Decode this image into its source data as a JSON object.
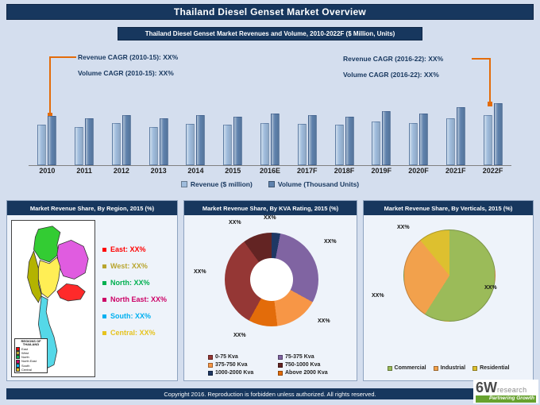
{
  "page": {
    "title": "Thailand Diesel Genset Market Overview",
    "footer_text": "Copyright 2016. Reproduction is forbidden unless authorized. All rights reserved.",
    "logo": {
      "mark": "6W",
      "name": "research",
      "tagline": "Partnering Growth"
    }
  },
  "colors": {
    "background": "#d4deee",
    "header_navy": "#17375e",
    "accent_orange": "#e36c0a"
  },
  "top_chart": {
    "title": "Thailand Diesel Genset Market Revenues and Volume, 2010-2022F ($ Million, Units)",
    "annotations": {
      "left": [
        "Revenue CAGR (2010-15): XX%",
        "Volume CAGR (2010-15): XX%"
      ],
      "right": [
        "Revenue CAGR (2016-22): XX%",
        "Volume CAGR (2016-22): XX%"
      ]
    }
  },
  "panels": {
    "region": {
      "title": "Market Revenue Share, By Region, 2015 (%)"
    },
    "kva": {
      "title": "Market Revenue Share, By KVA Rating, 2015 (%)"
    },
    "verticals": {
      "title": "Market Revenue Share, By Verticals, 2015 (%)"
    }
  },
  "region_panel": {
    "map_legend_title": "REGIONS OF THAILAND",
    "items": [
      {
        "name": "East",
        "label": "East: XX%",
        "color": "#ff0000"
      },
      {
        "name": "West",
        "label": "West: XX%",
        "color": "#b8a52e"
      },
      {
        "name": "North",
        "label": "North: XX%",
        "color": "#00b050"
      },
      {
        "name": "North East",
        "label": "North East: XX%",
        "color": "#cc0066"
      },
      {
        "name": "South",
        "label": "South: XX%",
        "color": "#00b0f0"
      },
      {
        "name": "Central",
        "label": "Central: XX%",
        "color": "#e6c31e"
      }
    ],
    "map_colors": {
      "north": "#33cc33",
      "north_east": "#e05ce0",
      "central": "#ffee55",
      "east": "#ff2a2a",
      "west": "#b3b300",
      "south": "#55d8e8"
    }
  },
  "chart_data": [
    {
      "type": "bar",
      "title": "Thailand Diesel Genset Market Revenues and Volume, 2010-2022F ($ Million, Units)",
      "categories": [
        "2010",
        "2011",
        "2012",
        "2013",
        "2014",
        "2015",
        "2016E",
        "2017F",
        "2018F",
        "2019F",
        "2020F",
        "2021F",
        "2022F"
      ],
      "series": [
        {
          "name": "Revenue ($ million)",
          "color": "#9fbcdc",
          "values": [
            55,
            52,
            58,
            52,
            57,
            55,
            58,
            56,
            55,
            60,
            58,
            64,
            68
          ]
        },
        {
          "name": "Volume (Thousand Units)",
          "color": "#5f82ad",
          "values": [
            67,
            64,
            69,
            64,
            68,
            66,
            71,
            68,
            66,
            74,
            71,
            79,
            85
          ]
        }
      ],
      "ylim": [
        0,
        100
      ],
      "note": "bar heights estimated from pixels; no numeric axis shown in source"
    },
    {
      "type": "donut",
      "title": "Market Revenue Share, By KVA Rating, 2015 (%)",
      "slice_label": "XX%",
      "segments_clockwise_from_top": [
        {
          "label": "1000-2000 Kva",
          "value": 3,
          "color": "#1f3864"
        },
        {
          "label": "75-375 Kva",
          "value": 30,
          "color": "#8064a2"
        },
        {
          "label": "375-750 Kva",
          "value": 15,
          "color": "#f79646"
        },
        {
          "label": "Above 2000 Kva",
          "value": 10,
          "color": "#e36c0a"
        },
        {
          "label": "0-75 Kva",
          "value": 32,
          "color": "#953735"
        },
        {
          "label": "750-1000 Kva",
          "value": 10,
          "color": "#632423"
        }
      ],
      "legend_order": [
        "0-75 Kva",
        "75-375 Kva",
        "375-750 Kva",
        "750-1000 Kva",
        "1000-2000 Kva",
        "Above 2000 Kva"
      ]
    },
    {
      "type": "pie",
      "title": "Market Revenue Share, By Verticals, 2015 (%)",
      "slice_label": "XX%",
      "segments_clockwise_from_top": [
        {
          "label": "Commercial",
          "value": 59,
          "color": "#9bbb59"
        },
        {
          "label": "Industrial",
          "value": 30,
          "color": "#f2a14c"
        },
        {
          "label": "Residential",
          "value": 11,
          "color": "#ddc02f"
        }
      ],
      "legend_order": [
        "Commercial",
        "Industrial",
        "Residential"
      ]
    }
  ]
}
